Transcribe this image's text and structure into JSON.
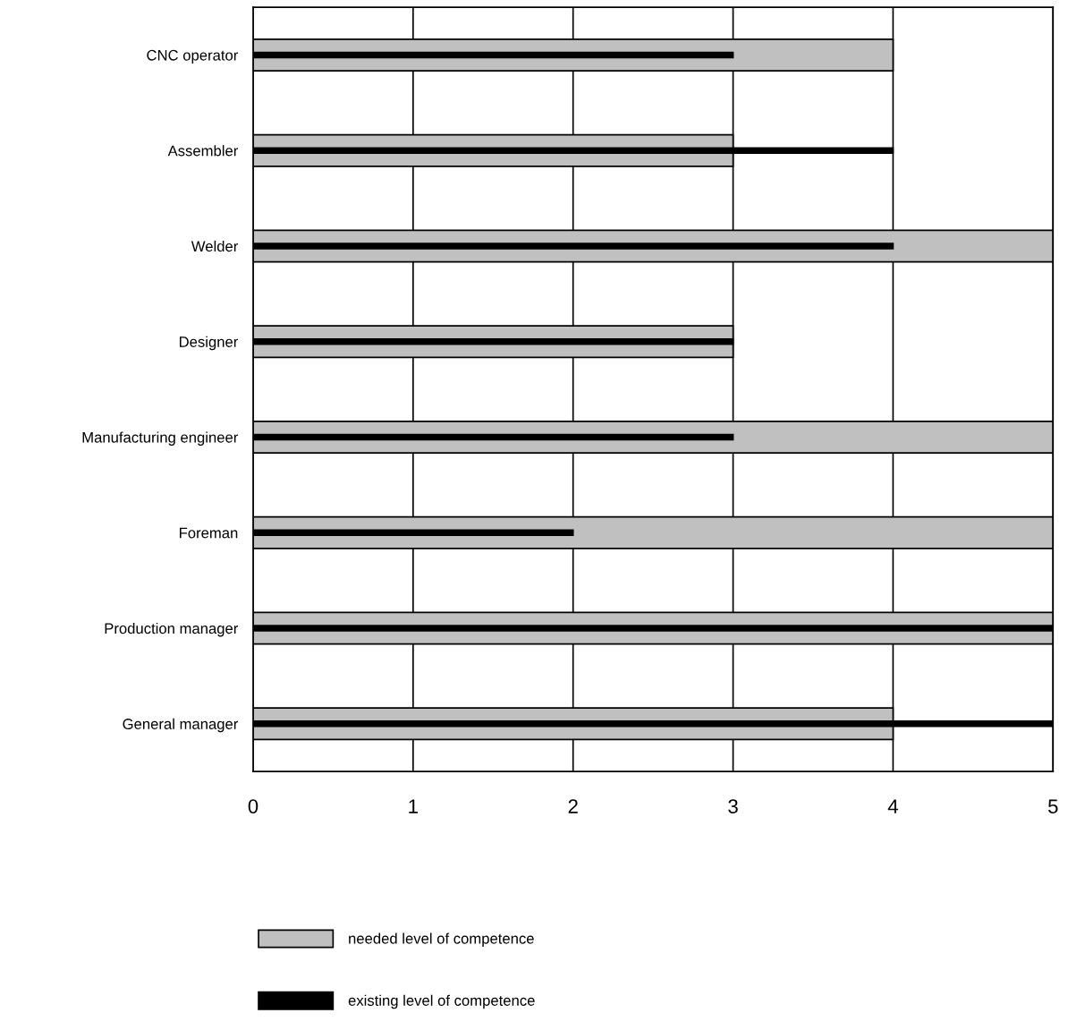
{
  "chart_data": {
    "type": "bar",
    "orientation": "horizontal",
    "categories": [
      "CNC operator",
      "Assembler",
      "Welder",
      "Designer",
      "Manufacturing engineer",
      "Foreman",
      "Production manager",
      "General manager"
    ],
    "series": [
      {
        "name": "needed level of competence",
        "color": "#c0c0c0",
        "values": [
          4,
          3,
          5,
          3,
          5,
          5,
          5,
          4
        ]
      },
      {
        "name": "existing level of competence",
        "color": "#000000",
        "values": [
          3,
          4,
          4,
          3,
          3,
          2,
          5,
          5
        ]
      }
    ],
    "xlim": [
      0,
      5
    ],
    "xticks": [
      0,
      1,
      2,
      3,
      4,
      5
    ],
    "grid": "x",
    "legend": "bottom"
  }
}
